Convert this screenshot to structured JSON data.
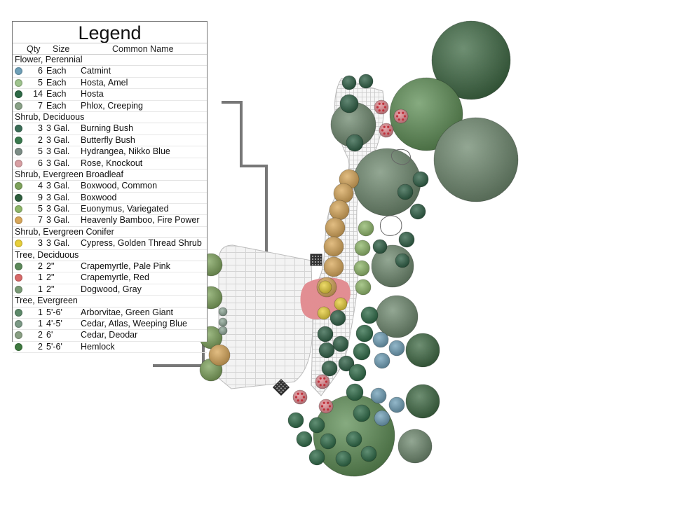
{
  "legend": {
    "title": "Legend",
    "headers": {
      "qty": "Qty",
      "size": "Size",
      "name": "Common Name"
    },
    "groups": [
      {
        "category": "Flower, Perennial",
        "items": [
          {
            "qty": "6",
            "size": "Each",
            "name": "Catmint",
            "color": "#6fa0b8",
            "icon": "catmint-icon"
          },
          {
            "qty": "5",
            "size": "Each",
            "name": "Hosta, Amel",
            "color": "#9fc48e",
            "icon": "hosta-amel-icon"
          },
          {
            "qty": "14",
            "size": "Each",
            "name": "Hosta",
            "color": "#2e6a46",
            "icon": "hosta-icon"
          },
          {
            "qty": "7",
            "size": "Each",
            "name": "Phlox, Creeping",
            "color": "#8aa288",
            "icon": "phlox-icon"
          }
        ]
      },
      {
        "category": "Shrub, Deciduous",
        "items": [
          {
            "qty": "3",
            "size": "3 Gal.",
            "name": "Burning Bush",
            "color": "#3c6e58",
            "icon": "burning-bush-icon"
          },
          {
            "qty": "2",
            "size": "3 Gal.",
            "name": "Butterfly Bush",
            "color": "#3a7a4e",
            "icon": "butterfly-bush-icon"
          },
          {
            "qty": "5",
            "size": "3 Gal.",
            "name": "Hydrangea, Nikko Blue",
            "color": "#7c8d86",
            "icon": "hydrangea-icon"
          },
          {
            "qty": "6",
            "size": "3 Gal.",
            "name": "Rose, Knockout",
            "color": "#d9a0a4",
            "icon": "rose-icon"
          }
        ]
      },
      {
        "category": "Shrub, Evergreen Broadleaf",
        "items": [
          {
            "qty": "4",
            "size": "3 Gal.",
            "name": "Boxwood, Common",
            "color": "#7ea35c",
            "icon": "boxwood-common-icon"
          },
          {
            "qty": "9",
            "size": "3 Gal.",
            "name": "Boxwood",
            "color": "#2f5f3e",
            "icon": "boxwood-icon"
          },
          {
            "qty": "5",
            "size": "3 Gal.",
            "name": "Euonymus, Variegated",
            "color": "#8fb76a",
            "icon": "euonymus-icon"
          },
          {
            "qty": "7",
            "size": "3 Gal.",
            "name": "Heavenly Bamboo, Fire Power",
            "color": "#d9a85a",
            "icon": "heavenly-bamboo-icon"
          }
        ]
      },
      {
        "category": "Shrub, Evergreen Conifer",
        "items": [
          {
            "qty": "3",
            "size": "3 Gal.",
            "name": "Cypress, Golden Thread Shrub",
            "color": "#e8cf3a",
            "icon": "cypress-icon"
          }
        ]
      },
      {
        "category": "Tree, Deciduous",
        "items": [
          {
            "qty": "2",
            "size": "2\"",
            "name": "Crapemyrtle, Pale Pink",
            "color": "#5c8a5a",
            "icon": "crapemyrtle-pink-icon"
          },
          {
            "qty": "1",
            "size": "2\"",
            "name": "Crapemyrtle, Red",
            "color": "#d96a6a",
            "icon": "crapemyrtle-red-icon"
          },
          {
            "qty": "1",
            "size": "2\"",
            "name": "Dogwood, Gray",
            "color": "#7a9a76",
            "icon": "dogwood-icon"
          }
        ]
      },
      {
        "category": "Tree, Evergreen",
        "items": [
          {
            "qty": "1",
            "size": "5'-6'",
            "name": "Arborvitae, Green Giant",
            "color": "#5d8a6a",
            "icon": "arborvitae-icon"
          },
          {
            "qty": "1",
            "size": "4'-5'",
            "name": "Cedar, Atlas, Weeping Blue",
            "color": "#7c9a86",
            "icon": "cedar-atlas-icon"
          },
          {
            "qty": "2",
            "size": "6'",
            "name": "Cedar, Deodar",
            "color": "#8aa084",
            "icon": "cedar-deodar-icon"
          },
          {
            "qty": "2",
            "size": "5'-6'",
            "name": "Hemlock",
            "color": "#3f7a40",
            "icon": "hemlock-icon"
          }
        ]
      }
    ]
  },
  "colors": {
    "tree_dark": "#3f6b45",
    "tree_gray": "#6f8a70",
    "tree_mid": "#5f8f57",
    "shrub_dark": "#2f5f45",
    "shrub_light": "#9fc48e",
    "blue": "#6fa0b8",
    "gold": "#d9a85a",
    "yellow": "#e8cf3a",
    "pink": "#e48b92",
    "paver": "#f1f1f1",
    "wall": "#777777"
  }
}
